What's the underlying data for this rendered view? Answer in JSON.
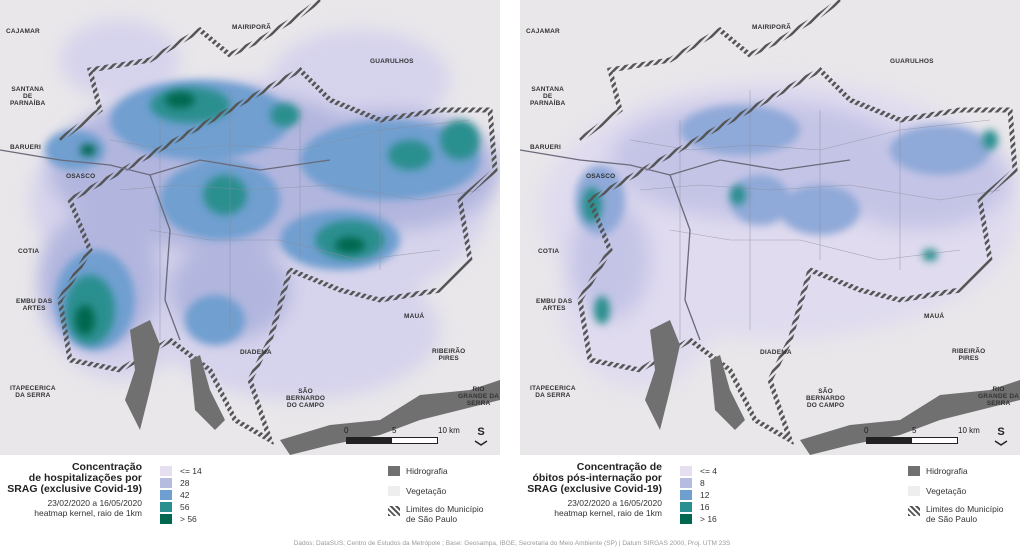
{
  "maps": [
    {
      "title": "Concentração de hospitalizações por SRAG (exclusive Covid-19)",
      "title_lines": [
        "Concentração",
        "de hospitalizações por",
        "SRAG (exclusive Covid-19)"
      ],
      "date_range": "23/02/2020 a 16/05/2020",
      "method": "heatmap kernel, raio de 1km",
      "classes": [
        {
          "label": "<= 14",
          "color": "#e6dff0"
        },
        {
          "label": "28",
          "color": "#b6bbe0"
        },
        {
          "label": "42",
          "color": "#6f9fd0"
        },
        {
          "label": "56",
          "color": "#2a8f8f"
        },
        {
          "label": "> 56",
          "color": "#00684f"
        }
      ]
    },
    {
      "title": "Concentração de óbitos pós-internação por SRAG (exclusive Covid-19)",
      "title_lines": [
        "Concentração de",
        "óbitos pós-internação por",
        "SRAG (exclusive Covid-19)"
      ],
      "date_range": "23/02/2020 a 16/05/2020",
      "method": "heatmap kernel, raio de 1km",
      "classes": [
        {
          "label": "<= 4",
          "color": "#e6dff0"
        },
        {
          "label": "8",
          "color": "#b6bbe0"
        },
        {
          "label": "12",
          "color": "#6f9fd0"
        },
        {
          "label": "16",
          "color": "#2a8f8f"
        },
        {
          "label": "> 16",
          "color": "#00684f"
        }
      ]
    }
  ],
  "reference_legend": [
    {
      "label": "Hidrografia",
      "icon": "hydrography-swatch",
      "color": "#707070"
    },
    {
      "label": "Vegetação",
      "icon": "vegetation-swatch",
      "color": "#eeeeee"
    },
    {
      "label": "Limites do Município de São Paulo",
      "label_lines": [
        "Limites do Município",
        "de São Paulo"
      ],
      "icon": "municipal-boundary-hatch"
    }
  ],
  "place_labels": [
    {
      "id": "cajamar",
      "lines": [
        "CAJAMAR"
      ]
    },
    {
      "id": "mairipora",
      "lines": [
        "MAIRIPORÃ"
      ]
    },
    {
      "id": "guarulhos",
      "lines": [
        "GUARULHOS"
      ]
    },
    {
      "id": "santana",
      "lines": [
        "SANTANA",
        "DE",
        "PARNAÍBA"
      ]
    },
    {
      "id": "barueri",
      "lines": [
        "BARUERI"
      ]
    },
    {
      "id": "osasco",
      "lines": [
        "OSASCO"
      ]
    },
    {
      "id": "cotia",
      "lines": [
        "COTIA"
      ]
    },
    {
      "id": "embu",
      "lines": [
        "EMBU DAS",
        "ARTES"
      ]
    },
    {
      "id": "itapecerica",
      "lines": [
        "ITAPECERICA",
        "DA SERRA"
      ]
    },
    {
      "id": "diadema",
      "lines": [
        "DIADEMA"
      ]
    },
    {
      "id": "saobernardo",
      "lines": [
        "SÃO",
        "BERNARDO",
        "DO CAMPO"
      ]
    },
    {
      "id": "maua",
      "lines": [
        "MAUÁ"
      ]
    },
    {
      "id": "ribeirao",
      "lines": [
        "RIBEIRÃO",
        "PIRES"
      ]
    },
    {
      "id": "riogrande",
      "lines": [
        "RIO",
        "GRANDE DA",
        "SERRA"
      ]
    }
  ],
  "scale_bar": {
    "ticks": [
      "0",
      "5",
      "10 km"
    ],
    "north_arrow": "S"
  },
  "credits": "Dados: DataSUS; Centro de Estudos da Metrópole ; Base: Geosampa, IBGE, Secretaria do Meio Ambiente (SP) | Datum SIRGAS 2000, Proj. UTM 23S"
}
